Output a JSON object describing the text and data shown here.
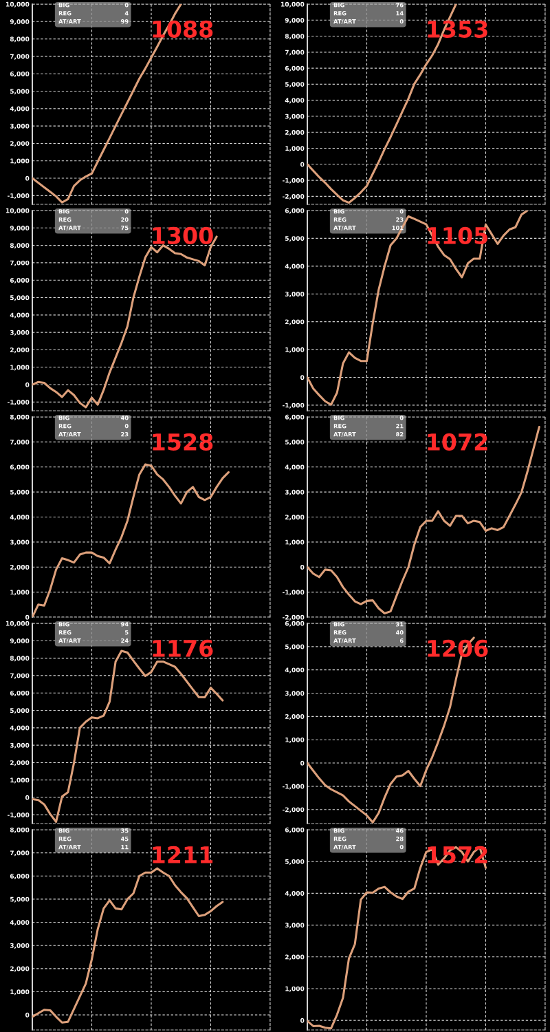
{
  "chart_data": [
    {
      "type": "line",
      "categories": [
        null,
        null,
        null,
        null,
        null,
        null,
        null,
        null,
        null,
        null,
        null,
        null,
        null,
        null,
        null,
        null,
        null,
        null,
        null,
        null,
        null,
        null,
        null,
        null,
        null,
        null,
        null,
        null,
        null,
        null,
        null,
        null,
        null,
        null,
        null,
        null,
        null,
        null,
        null,
        null,
        null
      ],
      "series": [
        {
          "color": "#dda07b",
          "values": [
            0,
            -260,
            -520,
            -780,
            -1040,
            -1390,
            -1200,
            -450,
            -120,
            100,
            270,
            950,
            1630,
            2310,
            3000,
            3680,
            4360,
            5040,
            5720,
            6300,
            6930,
            7550,
            8200,
            8800,
            9450,
            10000,
            null,
            null,
            null,
            null,
            null,
            null,
            null,
            null,
            null,
            null,
            null,
            null,
            null,
            null,
            null
          ]
        }
      ],
      "ylim": [
        -1500,
        10000
      ],
      "yticks": [
        {
          "value": -1000,
          "label": "-1,000"
        },
        0,
        {
          "value": 1000,
          "label": "1,000"
        },
        {
          "value": 2000,
          "label": "2,000"
        },
        {
          "value": 3000,
          "label": "3,000"
        },
        {
          "value": 4000,
          "label": "4,000"
        },
        {
          "value": 5000,
          "label": "5,000"
        },
        {
          "value": 6000,
          "label": "6,000"
        },
        {
          "value": 7000,
          "label": "7,000"
        },
        {
          "value": 8000,
          "label": "8,000"
        },
        {
          "value": 9000,
          "label": "9,000"
        },
        {
          "value": 10000,
          "label": "10,000"
        }
      ],
      "grid": true,
      "tick_labels": "y",
      "annotations": [
        "BIG",
        "0",
        "REG",
        "4",
        "AT/ART",
        "99",
        "1088"
      ]
    },
    {
      "type": "line",
      "categories": [
        null,
        null,
        null,
        null,
        null,
        null,
        null,
        null,
        null,
        null,
        null,
        null,
        null,
        null,
        null,
        null,
        null,
        null,
        null,
        null,
        null,
        null,
        null,
        null,
        null,
        null,
        null,
        null,
        null,
        null,
        null,
        null,
        null,
        null,
        null,
        null,
        null,
        null,
        null,
        null,
        null
      ],
      "series": [
        {
          "color": "#dda07b",
          "values": [
            0,
            -400,
            -800,
            -1150,
            -1550,
            -1900,
            -2250,
            -2400,
            -2100,
            -1750,
            -1350,
            -600,
            150,
            950,
            1700,
            2500,
            3300,
            4100,
            5020,
            5600,
            6250,
            6800,
            7500,
            8400,
            9200,
            10000,
            null,
            null,
            null,
            null,
            null,
            null,
            null,
            null,
            null,
            null,
            null,
            null,
            null,
            null,
            null
          ]
        }
      ],
      "ylim": [
        -2500,
        10000
      ],
      "yticks": [
        {
          "value": -2000,
          "label": "-2,000"
        },
        {
          "value": -1000,
          "label": "-1,000"
        },
        0,
        {
          "value": 1000,
          "label": "1,000"
        },
        {
          "value": 2000,
          "label": "2,000"
        },
        {
          "value": 3000,
          "label": "3,000"
        },
        {
          "value": 4000,
          "label": "4,000"
        },
        {
          "value": 5000,
          "label": "5,000"
        },
        {
          "value": 6000,
          "label": "6,000"
        },
        {
          "value": 7000,
          "label": "7,000"
        },
        {
          "value": 8000,
          "label": "8,000"
        },
        {
          "value": 9000,
          "label": "9,000"
        },
        {
          "value": 10000,
          "label": "10,000"
        }
      ],
      "grid": true,
      "tick_labels": "y",
      "annotations": [
        "BIG",
        "76",
        "REG",
        "14",
        "AT/ART",
        "0",
        "1353"
      ]
    },
    {
      "type": "line",
      "categories": [
        null,
        null,
        null,
        null,
        null,
        null,
        null,
        null,
        null,
        null,
        null,
        null,
        null,
        null,
        null,
        null,
        null,
        null,
        null,
        null,
        null,
        null,
        null,
        null,
        null,
        null,
        null,
        null,
        null,
        null,
        null,
        null,
        null,
        null,
        null,
        null,
        null,
        null,
        null,
        null,
        null
      ],
      "series": [
        {
          "color": "#dda07b",
          "values": [
            0,
            150,
            100,
            -200,
            -420,
            -710,
            -320,
            -600,
            -1050,
            -1300,
            -750,
            -1150,
            -300,
            700,
            1550,
            2400,
            3350,
            5000,
            6200,
            7300,
            7900,
            7600,
            8000,
            7800,
            7550,
            7500,
            7300,
            7200,
            7100,
            6850,
            7900,
            8500,
            null,
            null,
            null,
            null,
            null,
            null,
            null,
            null,
            null
          ]
        }
      ],
      "ylim": [
        -1500,
        10000
      ],
      "yticks": [
        {
          "value": -1000,
          "label": "-1,000"
        },
        0,
        {
          "value": 1000,
          "label": "1,000"
        },
        {
          "value": 2000,
          "label": "2,000"
        },
        {
          "value": 3000,
          "label": "3,000"
        },
        {
          "value": 4000,
          "label": "4,000"
        },
        {
          "value": 5000,
          "label": "5,000"
        },
        {
          "value": 6000,
          "label": "6,000"
        },
        {
          "value": 7000,
          "label": "7,000"
        },
        {
          "value": 8000,
          "label": "8,000"
        },
        {
          "value": 9000,
          "label": "9,000"
        },
        {
          "value": 10000,
          "label": "10,000"
        }
      ],
      "grid": true,
      "tick_labels": "y",
      "annotations": [
        "BIG",
        "0",
        "REG",
        "20",
        "AT/ART",
        "75",
        "1300"
      ]
    },
    {
      "type": "line",
      "categories": [
        null,
        null,
        null,
        null,
        null,
        null,
        null,
        null,
        null,
        null,
        null,
        null,
        null,
        null,
        null,
        null,
        null,
        null,
        null,
        null,
        null,
        null,
        null,
        null,
        null,
        null,
        null,
        null,
        null,
        null,
        null,
        null,
        null,
        null,
        null,
        null,
        null,
        null,
        null,
        null,
        null
      ],
      "series": [
        {
          "color": "#dda07b",
          "values": [
            0,
            -400,
            -640,
            -860,
            -980,
            -550,
            500,
            900,
            700,
            590,
            590,
            1950,
            3150,
            4000,
            4750,
            5000,
            5400,
            5790,
            5700,
            5600,
            5500,
            5100,
            4700,
            4400,
            4250,
            3900,
            3600,
            4100,
            4270,
            4270,
            5500,
            5150,
            4800,
            5100,
            5320,
            5400,
            5850,
            6000,
            null,
            null,
            null
          ]
        }
      ],
      "ylim": [
        -1200,
        6000
      ],
      "yticks": [
        {
          "value": -1000,
          "label": "-1,000"
        },
        0,
        {
          "value": 1000,
          "label": "1,000"
        },
        {
          "value": 2000,
          "label": "2,000"
        },
        {
          "value": 3000,
          "label": "3,000"
        },
        {
          "value": 4000,
          "label": "4,000"
        },
        {
          "value": 5000,
          "label": "5,000"
        },
        {
          "value": 6000,
          "label": "6,000"
        }
      ],
      "grid": true,
      "tick_labels": "y",
      "annotations": [
        "BIG",
        "0",
        "REG",
        "23",
        "AT/ART",
        "101",
        "1105"
      ]
    },
    {
      "type": "line",
      "categories": [
        null,
        null,
        null,
        null,
        null,
        null,
        null,
        null,
        null,
        null,
        null,
        null,
        null,
        null,
        null,
        null,
        null,
        null,
        null,
        null,
        null,
        null,
        null,
        null,
        null,
        null,
        null,
        null,
        null,
        null,
        null,
        null,
        null,
        null,
        null,
        null,
        null,
        null,
        null,
        null,
        null
      ],
      "series": [
        {
          "color": "#dda07b",
          "values": [
            0,
            500,
            460,
            1100,
            1900,
            2350,
            2280,
            2180,
            2500,
            2580,
            2580,
            2440,
            2380,
            2150,
            2700,
            3200,
            3850,
            4800,
            5700,
            6100,
            6050,
            5700,
            5500,
            5200,
            4850,
            4540,
            5000,
            5200,
            4800,
            4680,
            4800,
            5200,
            5550,
            5790,
            null,
            null,
            null,
            null,
            null,
            null,
            null
          ]
        }
      ],
      "ylim": [
        0,
        8000
      ],
      "yticks": [
        0,
        {
          "value": 1000,
          "label": "1,000"
        },
        {
          "value": 2000,
          "label": "2,000"
        },
        {
          "value": 3000,
          "label": "3,000"
        },
        {
          "value": 4000,
          "label": "4,000"
        },
        {
          "value": 5000,
          "label": "5,000"
        },
        {
          "value": 6000,
          "label": "6,000"
        },
        {
          "value": 7000,
          "label": "7,000"
        },
        {
          "value": 8000,
          "label": "8,000"
        }
      ],
      "grid": true,
      "tick_labels": "y",
      "annotations": [
        "BIG",
        "40",
        "REG",
        "0",
        "AT/ART",
        "23",
        "1528"
      ]
    },
    {
      "type": "line",
      "categories": [
        null,
        null,
        null,
        null,
        null,
        null,
        null,
        null,
        null,
        null,
        null,
        null,
        null,
        null,
        null,
        null,
        null,
        null,
        null,
        null,
        null,
        null,
        null,
        null,
        null,
        null,
        null,
        null,
        null,
        null,
        null,
        null,
        null,
        null,
        null,
        null,
        null,
        null,
        null,
        null,
        null
      ],
      "series": [
        {
          "color": "#dda07b",
          "values": [
            0,
            -260,
            -400,
            -100,
            -130,
            -400,
            -800,
            -1100,
            -1370,
            -1480,
            -1350,
            -1330,
            -1650,
            -1850,
            -1770,
            -1150,
            -550,
            0,
            900,
            1600,
            1850,
            1850,
            2230,
            1850,
            1650,
            2050,
            2050,
            1750,
            1850,
            1800,
            1450,
            1550,
            1480,
            1600,
            2050,
            2500,
            2980,
            3800,
            4700,
            5600,
            null
          ]
        }
      ],
      "ylim": [
        -2000,
        6000
      ],
      "yticks": [
        {
          "value": -2000,
          "label": "-2,000"
        },
        {
          "value": -1000,
          "label": "-1,000"
        },
        0,
        {
          "value": 1000,
          "label": "1,000"
        },
        {
          "value": 2000,
          "label": "2,000"
        },
        {
          "value": 3000,
          "label": "3,000"
        },
        {
          "value": 4000,
          "label": "4,000"
        },
        {
          "value": 5000,
          "label": "5,000"
        },
        {
          "value": 6000,
          "label": "6,000"
        }
      ],
      "grid": true,
      "tick_labels": "y",
      "annotations": [
        "BIG",
        "0",
        "REG",
        "21",
        "AT/ART",
        "82",
        "1072"
      ]
    },
    {
      "type": "line",
      "categories": [
        null,
        null,
        null,
        null,
        null,
        null,
        null,
        null,
        null,
        null,
        null,
        null,
        null,
        null,
        null,
        null,
        null,
        null,
        null,
        null,
        null,
        null,
        null,
        null,
        null,
        null,
        null,
        null,
        null,
        null,
        null,
        null,
        null,
        null,
        null,
        null,
        null,
        null,
        null,
        null,
        null
      ],
      "series": [
        {
          "color": "#dda07b",
          "values": [
            -100,
            -150,
            -400,
            -950,
            -1400,
            50,
            300,
            1980,
            4000,
            4350,
            4600,
            4550,
            4700,
            5500,
            7800,
            8420,
            8320,
            7850,
            7400,
            6980,
            7200,
            7800,
            7800,
            7650,
            7500,
            7100,
            6650,
            6200,
            5760,
            5750,
            6300,
            5950,
            5570,
            null,
            null,
            null,
            null,
            null,
            null,
            null,
            null
          ]
        }
      ],
      "ylim": [
        -1500,
        10000
      ],
      "yticks": [
        {
          "value": -1000,
          "label": "-1,000"
        },
        0,
        {
          "value": 1000,
          "label": "1,000"
        },
        {
          "value": 2000,
          "label": "2,000"
        },
        {
          "value": 3000,
          "label": "3,000"
        },
        {
          "value": 4000,
          "label": "4,000"
        },
        {
          "value": 5000,
          "label": "5,000"
        },
        {
          "value": 6000,
          "label": "6,000"
        },
        {
          "value": 7000,
          "label": "7,000"
        },
        {
          "value": 8000,
          "label": "8,000"
        },
        {
          "value": 9000,
          "label": "9,000"
        },
        {
          "value": 10000,
          "label": "10,000"
        }
      ],
      "grid": true,
      "tick_labels": "y",
      "annotations": [
        "BIG",
        "94",
        "REG",
        "5",
        "AT/ART",
        "24",
        "1176"
      ]
    },
    {
      "type": "line",
      "categories": [
        null,
        null,
        null,
        null,
        null,
        null,
        null,
        null,
        null,
        null,
        null,
        null,
        null,
        null,
        null,
        null,
        null,
        null,
        null,
        null,
        null,
        null,
        null,
        null,
        null,
        null,
        null,
        null,
        null,
        null,
        null,
        null,
        null,
        null,
        null,
        null,
        null,
        null,
        null,
        null,
        null
      ],
      "series": [
        {
          "color": "#dda07b",
          "values": [
            0,
            -330,
            -660,
            -950,
            -1130,
            -1260,
            -1390,
            -1650,
            -1850,
            -2050,
            -2250,
            -2550,
            -2150,
            -1480,
            -900,
            -580,
            -530,
            -340,
            -680,
            -990,
            -300,
            250,
            900,
            1600,
            2400,
            3600,
            4700,
            5100,
            5380,
            null,
            null,
            null,
            null,
            null,
            null,
            null,
            null,
            null,
            null,
            null,
            null
          ]
        }
      ],
      "ylim": [
        -2600,
        6000
      ],
      "yticks": [
        {
          "value": -2000,
          "label": "-2,000"
        },
        {
          "value": -1000,
          "label": "-1,000"
        },
        0,
        {
          "value": 1000,
          "label": "1,000"
        },
        {
          "value": 2000,
          "label": "2,000"
        },
        {
          "value": 3000,
          "label": "3,000"
        },
        {
          "value": 4000,
          "label": "4,000"
        },
        {
          "value": 5000,
          "label": "5,000"
        },
        {
          "value": 6000,
          "label": "6,000"
        }
      ],
      "grid": true,
      "tick_labels": "y",
      "annotations": [
        "BIG",
        "31",
        "REG",
        "40",
        "AT/ART",
        "6",
        "1206"
      ]
    },
    {
      "type": "line",
      "categories": [
        null,
        null,
        null,
        null,
        null,
        null,
        null,
        null,
        null,
        null,
        null,
        null,
        null,
        null,
        null,
        null,
        null,
        null,
        null,
        null,
        null,
        null,
        null,
        null,
        null,
        null,
        null,
        null,
        null,
        null,
        null,
        null,
        null,
        null,
        null,
        null,
        null,
        null,
        null,
        null,
        null
      ],
      "series": [
        {
          "color": "#dda07b",
          "values": [
            -80,
            70,
            220,
            200,
            -80,
            -330,
            -300,
            250,
            800,
            1350,
            2400,
            3700,
            4600,
            4950,
            4600,
            4560,
            5000,
            5250,
            6000,
            6150,
            6150,
            6330,
            6150,
            6000,
            5600,
            5300,
            5040,
            4650,
            4270,
            4320,
            4480,
            4700,
            4880,
            null,
            null,
            null,
            null,
            null,
            null,
            null,
            null
          ]
        }
      ],
      "ylim": [
        -650,
        8000
      ],
      "yticks": [
        0,
        {
          "value": 1000,
          "label": "1,000"
        },
        {
          "value": 2000,
          "label": "2,000"
        },
        {
          "value": 3000,
          "label": "3,000"
        },
        {
          "value": 4000,
          "label": "4,000"
        },
        {
          "value": 5000,
          "label": "5,000"
        },
        {
          "value": 6000,
          "label": "6,000"
        },
        {
          "value": 7000,
          "label": "7,000"
        },
        {
          "value": 8000,
          "label": "8,000"
        }
      ],
      "grid": true,
      "tick_labels": "y",
      "annotations": [
        "BIG",
        "35",
        "REG",
        "45",
        "AT/ART",
        "11",
        "1211"
      ]
    },
    {
      "type": "line",
      "categories": [
        null,
        null,
        null,
        null,
        null,
        null,
        null,
        null,
        null,
        null,
        null,
        null,
        null,
        null,
        null,
        null,
        null,
        null,
        null,
        null,
        null,
        null,
        null,
        null,
        null,
        null,
        null,
        null,
        null,
        null,
        null,
        null,
        null,
        null,
        null,
        null,
        null,
        null,
        null,
        null,
        null
      ],
      "series": [
        {
          "color": "#dda07b",
          "values": [
            -20,
            -180,
            -170,
            -230,
            -250,
            180,
            710,
            1950,
            2400,
            3800,
            4030,
            4020,
            4150,
            4200,
            4030,
            3900,
            3820,
            4050,
            4150,
            4800,
            5300,
            5380,
            4900,
            5100,
            5350,
            5450,
            5300,
            5000,
            5300,
            5450,
            4800,
            null,
            null,
            null,
            null,
            null,
            null,
            null,
            null,
            null,
            null
          ]
        }
      ],
      "ylim": [
        -300,
        6000
      ],
      "yticks": [
        0,
        {
          "value": 1000,
          "label": "1,000"
        },
        {
          "value": 2000,
          "label": "2,000"
        },
        {
          "value": 3000,
          "label": "3,000"
        },
        {
          "value": 4000,
          "label": "4,000"
        },
        {
          "value": 5000,
          "label": "5,000"
        },
        {
          "value": 6000,
          "label": "6,000"
        }
      ],
      "grid": true,
      "tick_labels": "y",
      "annotations": [
        "BIG",
        "46",
        "REG",
        "28",
        "AT/ART",
        "0",
        "1572"
      ]
    }
  ]
}
